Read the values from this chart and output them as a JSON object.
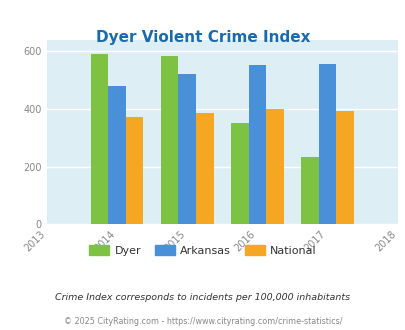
{
  "title": "Dyer Violent Crime Index",
  "years": [
    2014,
    2015,
    2016,
    2017
  ],
  "dyer": [
    590,
    583,
    350,
    235
  ],
  "arkansas": [
    480,
    520,
    552,
    555
  ],
  "national": [
    372,
    385,
    398,
    394
  ],
  "bar_colors": {
    "dyer": "#7dc242",
    "arkansas": "#4a90d9",
    "national": "#f5a623"
  },
  "xlim": [
    2013,
    2018
  ],
  "ylim": [
    0,
    640
  ],
  "yticks": [
    0,
    200,
    400,
    600
  ],
  "background_color": "#deeef5",
  "title_color": "#1a6bad",
  "title_fontsize": 11,
  "footnote1": "Crime Index corresponds to incidents per 100,000 inhabitants",
  "footnote2": "© 2025 CityRating.com - https://www.cityrating.com/crime-statistics/",
  "legend_labels": [
    "Dyer",
    "Arkansas",
    "National"
  ],
  "bar_width": 0.25
}
